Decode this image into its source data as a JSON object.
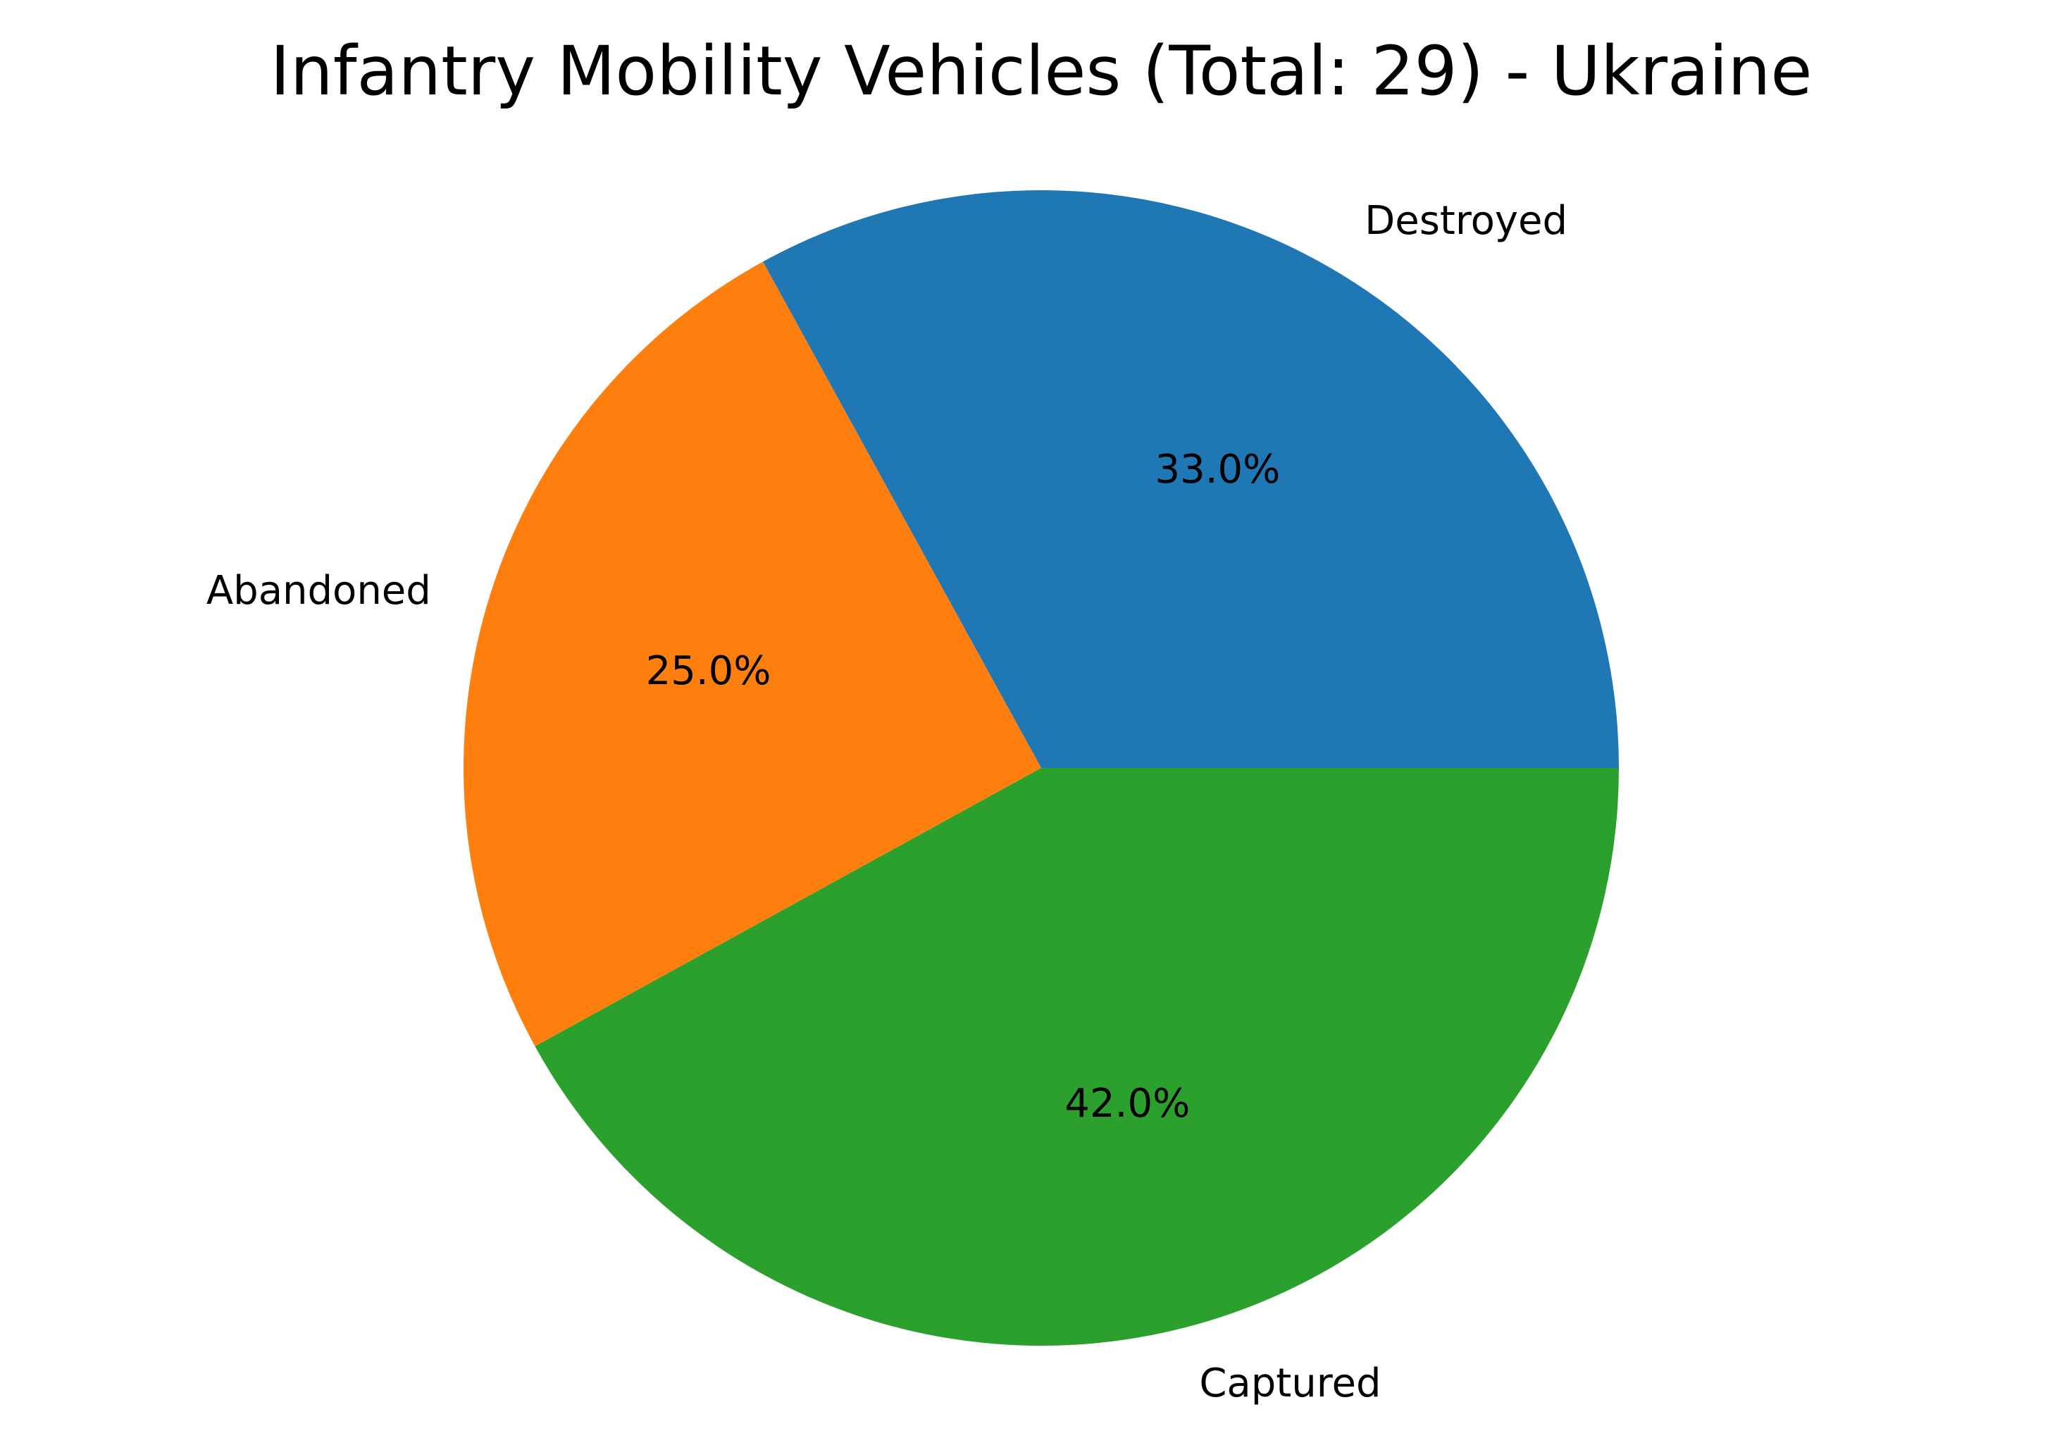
{
  "chart_data": {
    "type": "pie",
    "title": "Infantry Mobility Vehicles (Total: 29) - Ukraine",
    "slices": [
      {
        "label": "Destroyed",
        "value": 33.0,
        "pct_label": "33.0%",
        "color": "#1f77b4"
      },
      {
        "label": "Abandoned",
        "value": 25.0,
        "pct_label": "25.0%",
        "color": "#ff7f0e"
      },
      {
        "label": "Captured",
        "value": 42.0,
        "pct_label": "42.0%",
        "color": "#2ca02c"
      }
    ],
    "start_angle_deg": 0,
    "direction": "counterclockwise"
  }
}
